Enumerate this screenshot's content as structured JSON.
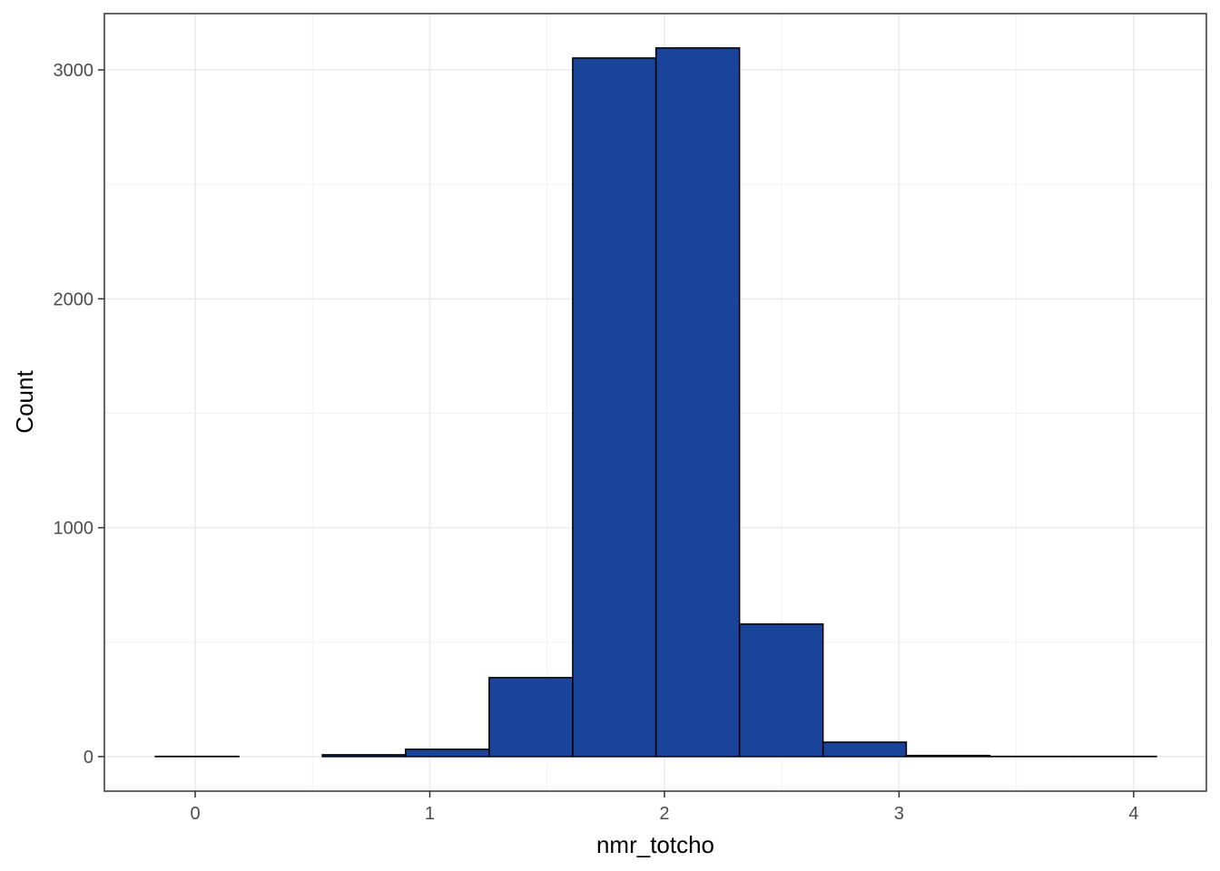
{
  "chart_data": {
    "type": "histogram",
    "x_label": "nmr_totcho",
    "y_label": "Count",
    "bins": [
      -0.17,
      0.186,
      0.542,
      0.897,
      1.253,
      1.609,
      1.964,
      2.32,
      2.676,
      3.031,
      3.387,
      3.742,
      4.097
    ],
    "counts": [
      1,
      0,
      8,
      32,
      345,
      3052,
      3096,
      579,
      63,
      5,
      1,
      1
    ],
    "color": "#1a4499",
    "xlim": [
      -0.387,
      4.31
    ],
    "ylim": [
      -151,
      3246
    ],
    "xticks": [
      0,
      1,
      2,
      3,
      4
    ],
    "yticks": [
      0,
      1000,
      2000,
      3000
    ],
    "grid": true
  }
}
